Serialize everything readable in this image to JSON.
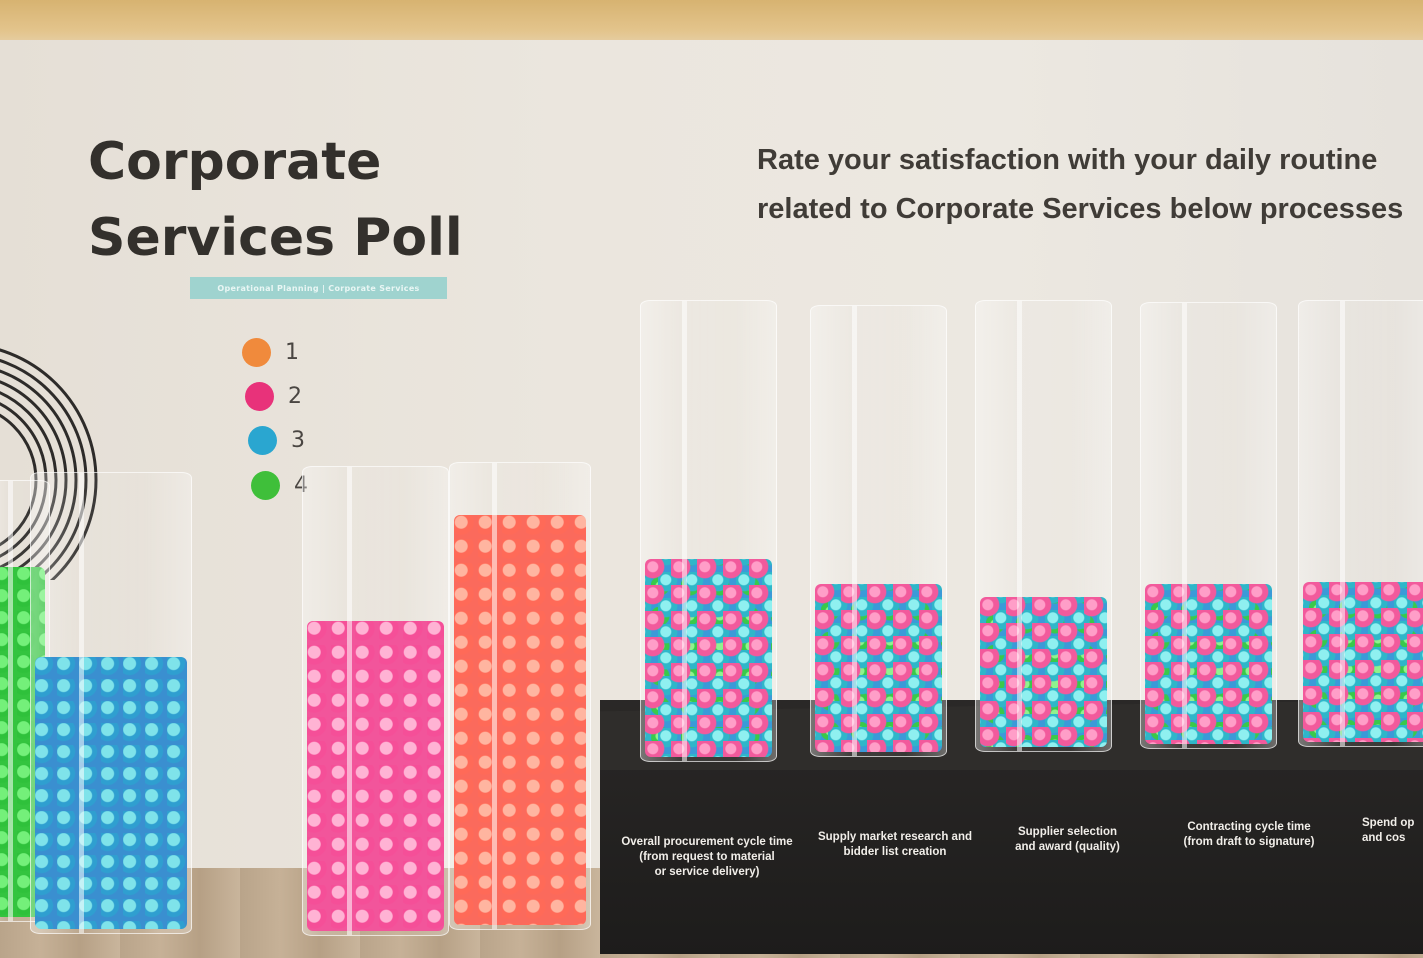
{
  "poll": {
    "title": "Corporate\nServices Poll",
    "subtitle": "Operational Planning | Corporate Services",
    "question": "Rate your satisfaction with your daily routine\nrelated to Corporate Services below processes"
  },
  "legend": [
    {
      "label": "1",
      "color": "#f08a3c"
    },
    {
      "label": "2",
      "color": "#e8327a"
    },
    {
      "label": "3",
      "color": "#2aa6d0"
    },
    {
      "label": "4",
      "color": "#3fbf3a"
    }
  ],
  "captions": [
    "Overall procurement cycle time\n(from request to material\nor service delivery)",
    "Supply market research and\nbidder list creation",
    "Supplier selection\nand award (quality)",
    "Contracting cycle time\n(from draft to signature)",
    "Spend op\nand cos"
  ],
  "colors": {
    "green": "#34c43f",
    "blue": "#3a8fd0",
    "pink": "#f2559b",
    "orange": "#fb6a5c"
  }
}
